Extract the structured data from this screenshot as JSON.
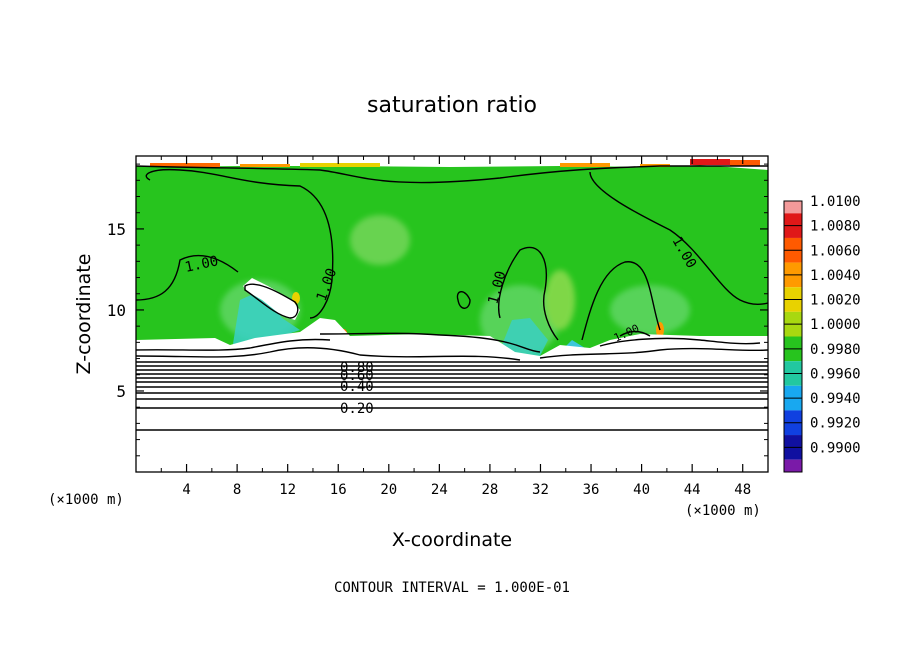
{
  "chart_data": {
    "type": "heatmap",
    "title": "saturation ratio",
    "xlabel": "X-coordinate",
    "ylabel": "Z-coordinate",
    "x_unit": "(×1000 m)",
    "y_unit": "(×1000 m)",
    "xlim": [
      0,
      50
    ],
    "ylim": [
      0,
      19.5
    ],
    "x_ticks": [
      4,
      8,
      12,
      16,
      20,
      24,
      28,
      32,
      36,
      40,
      44,
      48
    ],
    "y_ticks": [
      5,
      10,
      15
    ],
    "colorbar": {
      "ticks": [
        "1.0100",
        "1.0080",
        "1.0060",
        "1.0040",
        "1.0020",
        "1.0000",
        "0.9980",
        "0.9960",
        "0.9940",
        "0.9920",
        "0.9900"
      ],
      "colors": [
        "#f39a9a",
        "#e01818",
        "#ff5a00",
        "#ff9a00",
        "#e8d200",
        "#a8d810",
        "#27c41e",
        "#22c8a0",
        "#18a8f0",
        "#1040e0",
        "#1010a0",
        "#7a1aa8"
      ]
    },
    "contour_labels": [
      "1.00",
      "1.00",
      "1.00",
      "1.00",
      "1.00",
      "0.80",
      "0.60",
      "0.40",
      "0.20"
    ],
    "contour_interval": "CONTOUR INTERVAL = 1.000E-01",
    "colors": {
      "saturated_field": "#27c41e",
      "subsaturated_region": "#ffffff"
    }
  }
}
